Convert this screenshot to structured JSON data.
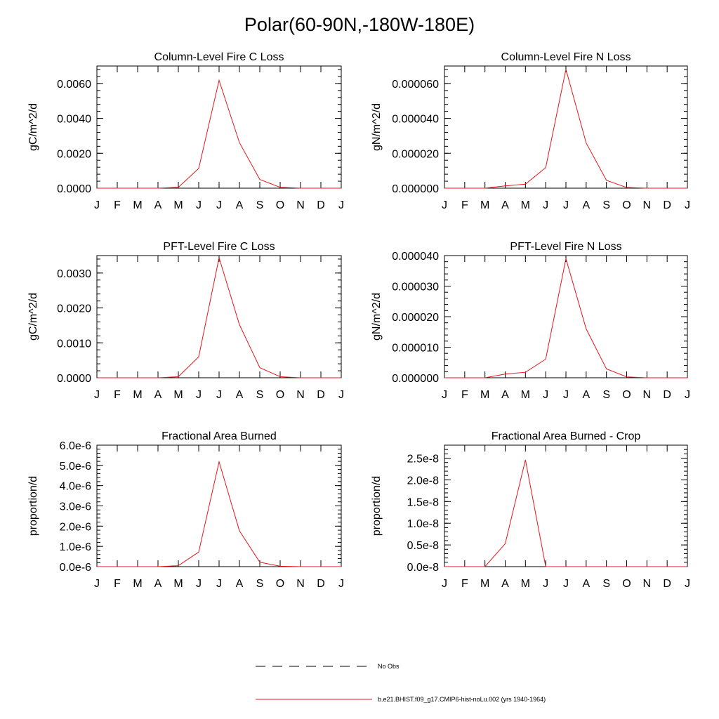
{
  "page_title": "Polar(60-90N,-180W-180E)",
  "colors": {
    "model_line": "#e8141b",
    "obs_line": "#000000",
    "axis": "#000000"
  },
  "legend": [
    {
      "label": "No Obs",
      "style": "dashed",
      "color": "#000000"
    },
    {
      "label": "b.e21.BHIST.f09_g17.CMIP6-hist-noLu.002 (yrs 1940-1964)",
      "style": "solid",
      "color": "#e8141b"
    }
  ],
  "chart_data": [
    {
      "type": "line",
      "title": "Column-Level Fire C Loss",
      "ylabel": "gC/m^2/d",
      "xlabel": "",
      "categories": [
        "J",
        "F",
        "M",
        "A",
        "M",
        "J",
        "J",
        "A",
        "S",
        "O",
        "N",
        "D",
        "J"
      ],
      "ylim": [
        0,
        0.007
      ],
      "yticks": [
        0,
        0.002,
        0.004,
        0.006
      ],
      "ytick_labels": [
        "0.0000",
        "0.0020",
        "0.0040",
        "0.0060"
      ],
      "series": [
        {
          "values": [
            0,
            0,
            0,
            0,
            5e-05,
            0.00113,
            0.00618,
            0.00261,
            0.0005,
            5e-05,
            0,
            0,
            0
          ]
        }
      ]
    },
    {
      "type": "line",
      "title": "Column-Level Fire N Loss",
      "ylabel": "gN/m^2/d",
      "xlabel": "",
      "categories": [
        "J",
        "F",
        "M",
        "A",
        "M",
        "J",
        "J",
        "A",
        "S",
        "O",
        "N",
        "D",
        "J"
      ],
      "ylim": [
        0,
        7e-05
      ],
      "yticks": [
        0,
        2e-05,
        4e-05,
        6e-05
      ],
      "ytick_labels": [
        "0.000000",
        "0.000020",
        "0.000040",
        "0.000060"
      ],
      "series": [
        {
          "values": [
            0,
            0,
            0,
            1.3e-06,
            2.3e-06,
            1.18e-05,
            6.81e-05,
            2.59e-05,
            4.5e-06,
            4e-07,
            0,
            0,
            0
          ]
        }
      ]
    },
    {
      "type": "line",
      "title": "PFT-Level Fire C Loss",
      "ylabel": "gC/m^2/d",
      "xlabel": "",
      "categories": [
        "J",
        "F",
        "M",
        "A",
        "M",
        "J",
        "J",
        "A",
        "S",
        "O",
        "N",
        "D",
        "J"
      ],
      "ylim": [
        0,
        0.0035
      ],
      "yticks": [
        0,
        0.001,
        0.002,
        0.003
      ],
      "ytick_labels": [
        "0.0000",
        "0.0010",
        "0.0020",
        "0.0030"
      ],
      "series": [
        {
          "values": [
            0,
            0,
            0,
            0,
            3e-05,
            0.0006,
            0.00344,
            0.00152,
            0.00029,
            3e-05,
            0,
            0,
            0
          ]
        }
      ]
    },
    {
      "type": "line",
      "title": "PFT-Level Fire N Loss",
      "ylabel": "gN/m^2/d",
      "xlabel": "",
      "categories": [
        "J",
        "F",
        "M",
        "A",
        "M",
        "J",
        "J",
        "A",
        "S",
        "O",
        "N",
        "D",
        "J"
      ],
      "ylim": [
        0,
        4e-05
      ],
      "yticks": [
        0,
        1e-05,
        2e-05,
        3e-05,
        4e-05
      ],
      "ytick_labels": [
        "0.000000",
        "0.000010",
        "0.000020",
        "0.000030",
        "0.000040"
      ],
      "series": [
        {
          "values": [
            0,
            0,
            0,
            1.2e-06,
            1.8e-06,
            6.1e-06,
            3.9e-05,
            1.6e-05,
            2.9e-06,
            3e-07,
            0,
            0,
            0
          ]
        }
      ]
    },
    {
      "type": "line",
      "title": "Fractional Area Burned",
      "ylabel": "proportion/d",
      "xlabel": "",
      "categories": [
        "J",
        "F",
        "M",
        "A",
        "M",
        "J",
        "J",
        "A",
        "S",
        "O",
        "N",
        "D",
        "J"
      ],
      "ylim": [
        0,
        6e-06
      ],
      "yticks": [
        0,
        1e-06,
        2e-06,
        3e-06,
        4e-06,
        5e-06,
        6e-06
      ],
      "ytick_labels": [
        "0.0e-6",
        "1.0e-6",
        "2.0e-6",
        "3.0e-6",
        "4.0e-6",
        "5.0e-6",
        "6.0e-6"
      ],
      "series": [
        {
          "values": [
            0,
            0,
            0,
            0,
            5e-08,
            7.2e-07,
            5.18e-06,
            1.77e-06,
            2.2e-07,
            2e-08,
            0,
            0,
            0
          ]
        }
      ]
    },
    {
      "type": "line",
      "title": "Fractional Area Burned - Crop",
      "ylabel": "proportion/d",
      "xlabel": "",
      "categories": [
        "J",
        "F",
        "M",
        "A",
        "M",
        "J",
        "J",
        "A",
        "S",
        "O",
        "N",
        "D",
        "J"
      ],
      "ylim": [
        0,
        2.8e-08
      ],
      "yticks": [
        0,
        5e-09,
        1e-08,
        1.5e-08,
        2e-08,
        2.5e-08
      ],
      "ytick_labels": [
        "0.0e-8",
        "0.5e-8",
        "1.0e-8",
        "1.5e-8",
        "2.0e-8",
        "2.5e-8"
      ],
      "series": [
        {
          "values": [
            0,
            0,
            0,
            5.3e-09,
            2.46e-08,
            0,
            0,
            0,
            0,
            0,
            0,
            0,
            0
          ]
        }
      ]
    }
  ]
}
